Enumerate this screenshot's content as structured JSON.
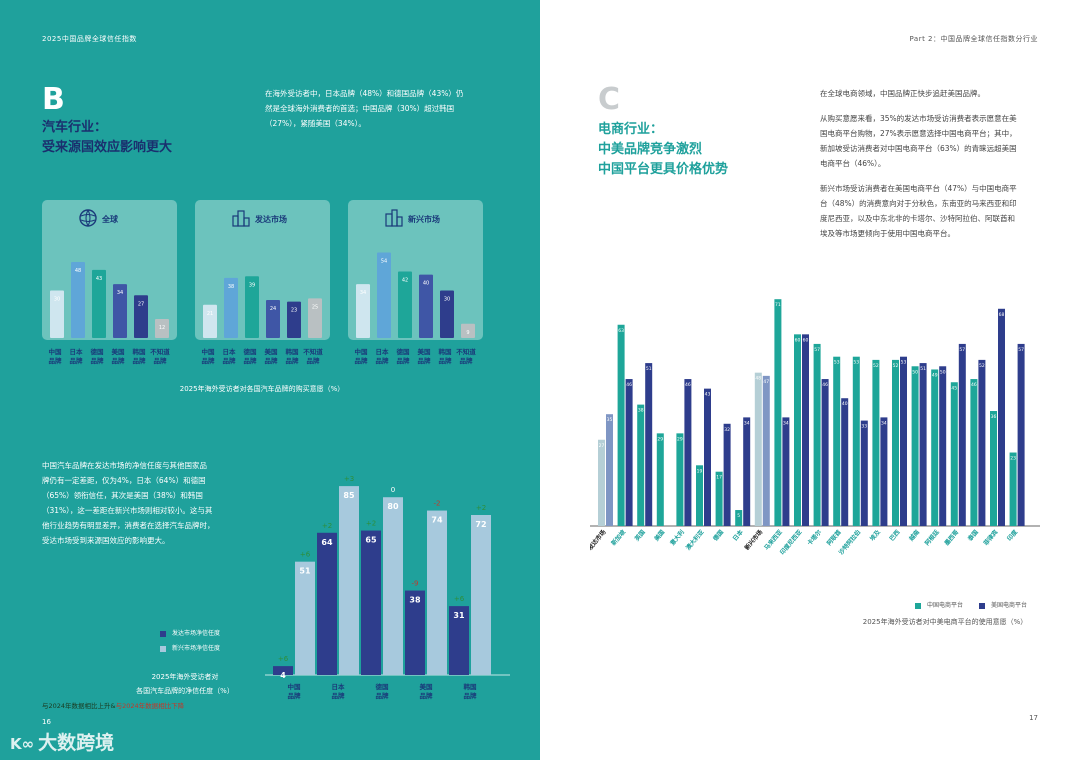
{
  "left_page": {
    "header": "2025中国品牌全球信任指数",
    "section_letter": "B",
    "section_title": [
      "汽车行业：",
      "受来源国效应影响更大"
    ],
    "intro": [
      "在海外受访者中，日本品牌（48%）和德国品牌（43%）仍",
      "然是全球海外消费者的首选；中国品牌（30%）超过韩国",
      "（27%），紧随美国（34%）。"
    ],
    "cards": [
      {
        "title": "全球",
        "icon": "globe-car-icon",
        "values": [
          30,
          48,
          43,
          34,
          27,
          12
        ],
        "labels": [
          "30",
          "48",
          "43",
          "34",
          "27",
          "12"
        ]
      },
      {
        "title": "发达市场",
        "icon": "city-icon",
        "values": [
          21,
          38,
          39,
          24,
          23,
          25
        ],
        "labels": [
          "21",
          "38",
          "39",
          "24",
          "23",
          "25"
        ]
      },
      {
        "title": "新兴市场",
        "icon": "city-icon",
        "values": [
          34,
          54,
          42,
          40,
          30,
          9
        ],
        "labels": [
          "34",
          "54",
          "42",
          "40",
          "30",
          "9"
        ]
      }
    ],
    "card_category_labels": [
      [
        "中国",
        "品牌"
      ],
      [
        "日本",
        "品牌"
      ],
      [
        "德国",
        "品牌"
      ],
      [
        "美国",
        "品牌"
      ],
      [
        "韩国",
        "品牌"
      ],
      [
        "不知道",
        "品牌"
      ]
    ],
    "chart1_caption": "2025年海外受访者对各国汽车品牌的购买意愿（%）",
    "body_text": [
      "中国汽车品牌在发达市场的净信任度与其他国家品",
      "牌仍有一定差距，仅为4%，日本（64%）和德国",
      "（65%）领衔信任，其次是美国（38%）和韩国",
      "（31%），这一差距在新兴市场则相对较小。这与其",
      "他行业趋势有明显差异，消费者在选择汽车品牌时，",
      "受达市场受到来源国效应的影响更大。"
    ],
    "legend": [
      "发达市场净信任度",
      "新兴市场净信任度"
    ],
    "chart2_caption": [
      "2025年海外受访者对",
      "各国汽车品牌的净信任度（%）"
    ],
    "chart2_note_a": "与2024年数据相比上升&",
    "chart2_note_b": "与2024年数据相比下降",
    "page_number": "16",
    "watermark": "大数跨境",
    "colors": {
      "teal_bg": "#1fa19c",
      "card_bg": "#6cc3bd",
      "navy": "#2e3d8c",
      "light_blue": "#a7c9dd",
      "teal_bar": "#1ea699",
      "grey_bar": "#a8b3b5",
      "up_green": "#2d8f3a",
      "down_red": "#c0392b"
    }
  },
  "right_page": {
    "header": "Part 2：中国品牌全球信任指数分行业",
    "section_letter": "C",
    "section_title": [
      "电商行业：",
      "中美品牌竞争激烈",
      "中国平台更具价格优势"
    ],
    "paragraphs": [
      [
        "在全球电商领域，中国品牌正快步追赶美国品牌。"
      ],
      [
        "从购买意愿来看，35%的发达市场受访消费者表示愿意在美",
        "国电商平台购物，27%表示愿意选择中国电商平台；其中，",
        "新加坡受访消费者对中国电商平台（63%）的青睐远超美国",
        "电商平台（46%）。"
      ],
      [
        "新兴市场受访消费者在美国电商平台（47%）与中国电商平",
        "台（48%）的消费意向对于分秋色，东南亚的马来西亚和印",
        "度尼西亚，以及中东北非的卡塔尔、沙特阿拉伯、阿联酋和",
        "埃及等市场更倾向于使用中国电商平台。"
      ]
    ],
    "legend": [
      "中国电商平台",
      "美国电商平台"
    ],
    "chart_caption": "2025年海外受访者对中美电商平台的使用意愿（%）",
    "page_number": "17"
  },
  "chart_data": [
    {
      "type": "bar",
      "title": "2025年海外受访者对各国汽车品牌的购买意愿（%）",
      "categories": [
        "中国品牌",
        "日本品牌",
        "德国品牌",
        "美国品牌",
        "韩国品牌",
        "不知道品牌"
      ],
      "series": [
        {
          "name": "全球",
          "values": [
            30,
            48,
            43,
            34,
            27,
            12
          ]
        },
        {
          "name": "发达市场",
          "values": [
            21,
            38,
            39,
            24,
            23,
            25
          ]
        },
        {
          "name": "新兴市场",
          "values": [
            34,
            54,
            42,
            40,
            30,
            9
          ]
        }
      ]
    },
    {
      "type": "bar",
      "title": "2025年海外受访者对各国汽车品牌的净信任度（%）",
      "categories": [
        "中国品牌",
        "日本品牌",
        "德国品牌",
        "美国品牌",
        "韩国品牌"
      ],
      "series": [
        {
          "name": "发达市场净信任度",
          "values": [
            4,
            64,
            65,
            38,
            31
          ],
          "change": [
            "+6",
            "+2",
            "+2",
            "-9",
            "+6"
          ]
        },
        {
          "name": "新兴市场净信任度",
          "values": [
            51,
            85,
            80,
            74,
            72
          ],
          "change": [
            "+6",
            "+3",
            "0",
            "-2",
            "+2"
          ]
        }
      ]
    },
    {
      "type": "bar",
      "title": "2025年海外受访者对中美电商平台的使用意愿（%）",
      "categories": [
        "发达市场",
        "新加坡",
        "英国",
        "美国",
        "意大利",
        "澳大利亚",
        "德国",
        "日本",
        "新兴市场",
        "马来西亚",
        "印度尼西亚",
        "卡塔尔",
        "阿联酋",
        "沙特阿拉伯",
        "埃及",
        "巴西",
        "越南",
        "阿根廷",
        "墨西哥",
        "泰国",
        "菲律宾",
        "印度"
      ],
      "series": [
        {
          "name": "中国电商平台",
          "values": [
            27,
            63,
            38,
            29,
            29,
            19,
            17,
            5,
            48,
            71,
            60,
            57,
            53,
            53,
            52,
            52,
            50,
            49,
            45,
            46,
            36,
            23
          ]
        },
        {
          "name": "美国电商平台",
          "values": [
            35,
            46,
            51,
            null,
            46,
            43,
            32,
            34,
            47,
            34,
            60,
            46,
            40,
            33,
            34,
            53,
            51,
            50,
            57,
            52,
            68,
            57
          ]
        }
      ]
    }
  ]
}
